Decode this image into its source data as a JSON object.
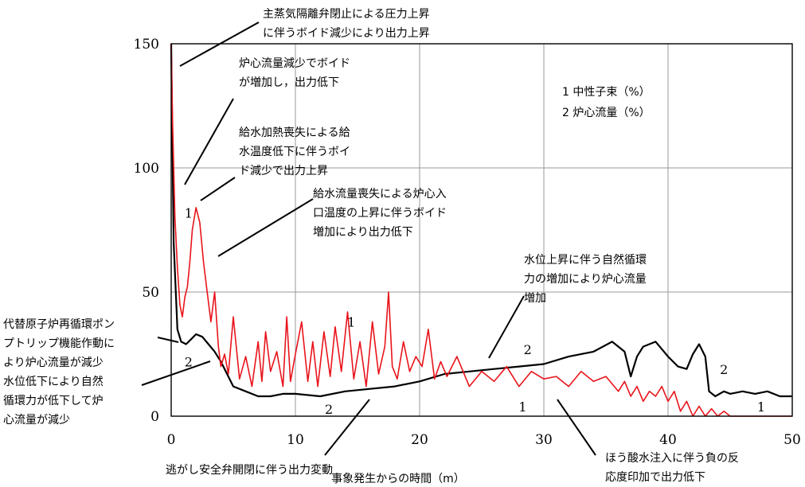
{
  "chart_data": {
    "type": "line",
    "xlabel": "事象発生からの時間（m）",
    "xlim": [
      0,
      50
    ],
    "ylim": [
      0,
      150
    ],
    "xticks": [
      "0",
      "10",
      "20",
      "30",
      "40",
      "50"
    ],
    "yticks": [
      "0",
      "50",
      "100",
      "150"
    ],
    "legend": [
      "1 中性子束（%）",
      "2 炉心流量（%）"
    ],
    "legend_position": "top-right",
    "grid": true,
    "colors": {
      "series1": "#e8141b",
      "series2": "#000000"
    },
    "series": [
      {
        "name": "1 中性子束（%）",
        "color": "#e8141b",
        "x": [
          0,
          0.1,
          0.3,
          0.5,
          0.7,
          0.9,
          1.1,
          1.3,
          1.5,
          1.7,
          2.0,
          2.3,
          2.6,
          2.9,
          3.2,
          3.5,
          3.8,
          4.0,
          4.3,
          4.6,
          5.0,
          5.5,
          6.0,
          6.5,
          7.0,
          7.3,
          7.6,
          8.0,
          8.5,
          9.0,
          9.3,
          9.6,
          10.0,
          10.5,
          11.0,
          11.4,
          11.8,
          12.3,
          12.8,
          13.2,
          13.7,
          14.2,
          14.7,
          15.2,
          15.7,
          16.2,
          16.7,
          17.2,
          17.5,
          17.8,
          18.2,
          18.7,
          19.2,
          19.7,
          20.2,
          20.7,
          21.2,
          21.7,
          22.2,
          23.0,
          24.0,
          25.0,
          26.0,
          27.0,
          28.0,
          29.0,
          30.0,
          31.0,
          32.0,
          33.0,
          34.0,
          35.0,
          36.0,
          36.5,
          37.0,
          37.5,
          38.0,
          38.5,
          39.0,
          39.5,
          40.0,
          40.5,
          41.0,
          41.5,
          42.0,
          42.5,
          43.0,
          43.5,
          44.0,
          44.5,
          45.0,
          50.0
        ],
        "y": [
          150,
          120,
          80,
          60,
          45,
          40,
          48,
          52,
          62,
          75,
          84,
          78,
          62,
          50,
          38,
          50,
          28,
          20,
          25,
          17,
          40,
          15,
          24,
          12,
          30,
          14,
          34,
          18,
          26,
          12,
          40,
          14,
          25,
          38,
          14,
          30,
          12,
          34,
          16,
          36,
          18,
          42,
          15,
          30,
          12,
          38,
          17,
          28,
          50,
          20,
          15,
          30,
          18,
          24,
          20,
          35,
          15,
          22,
          16,
          24,
          12,
          18,
          14,
          20,
          12,
          18,
          15,
          16,
          12,
          18,
          14,
          16,
          10,
          14,
          8,
          12,
          6,
          10,
          8,
          12,
          6,
          10,
          2,
          6,
          0,
          4,
          0,
          3,
          0,
          2,
          0,
          0
        ]
      },
      {
        "name": "2 炉心流量（%）",
        "color": "#000000",
        "x": [
          0,
          0.2,
          0.5,
          0.8,
          1.2,
          1.6,
          2.0,
          2.5,
          3.0,
          3.5,
          4.0,
          5.0,
          6.0,
          7.0,
          8.0,
          9.0,
          10.0,
          12.0,
          14.0,
          16.0,
          18.0,
          20.0,
          22.0,
          24.0,
          26.0,
          28.0,
          30.0,
          32.0,
          34.0,
          35.5,
          36.5,
          37.0,
          37.5,
          38.0,
          38.5,
          39.0,
          40.0,
          40.8,
          41.5,
          42.0,
          42.5,
          43.0,
          43.3,
          43.8,
          44.5,
          45.0,
          46.0,
          47.0,
          48.0,
          49.0,
          50.0
        ],
        "y": [
          150,
          70,
          35,
          30,
          29,
          31,
          33,
          32,
          29,
          26,
          22,
          12,
          10,
          8,
          8,
          9,
          9,
          8,
          10,
          11,
          12,
          14,
          17,
          18,
          19,
          20,
          21,
          24,
          26,
          30,
          26,
          16,
          24,
          28,
          29,
          30,
          24,
          20,
          19,
          25,
          29,
          24,
          10,
          8,
          10,
          9,
          10,
          9,
          10,
          8,
          8
        ]
      }
    ],
    "curve_marks": [
      {
        "text": "1",
        "x": 1.4,
        "y": 80
      },
      {
        "text": "1",
        "x": 14.5,
        "y": 36
      },
      {
        "text": "1",
        "x": 28.3,
        "y": 2
      },
      {
        "text": "1",
        "x": 47.5,
        "y": 2
      },
      {
        "text": "2",
        "x": 1.4,
        "y": 20
      },
      {
        "text": "2",
        "x": 12.7,
        "y": 1
      },
      {
        "text": "2",
        "x": 28.7,
        "y": 25
      },
      {
        "text": "2",
        "x": 44.5,
        "y": 17
      }
    ],
    "annotations": [
      {
        "id": "a1",
        "lines": [
          "主蒸気隔離弁閉止による圧力上昇",
          "に伴うボイド減少により出力上昇"
        ]
      },
      {
        "id": "a2",
        "lines": [
          "炉心流量減少でボイド",
          "が増加し，出力低下"
        ]
      },
      {
        "id": "a3",
        "lines": [
          "給水加熱喪失による給",
          "水温度低下に伴うボイ",
          "ド減少で出力上昇"
        ]
      },
      {
        "id": "a4",
        "lines": [
          "給水流量喪失による炉心入",
          "口温度の上昇に伴うボイド",
          "増加により出力低下"
        ]
      },
      {
        "id": "a5",
        "lines": [
          "水位上昇に伴う自然循環",
          "力の増加により炉心流量",
          "増加"
        ]
      },
      {
        "id": "a6",
        "lines": [
          "代替原子炉再循環ポン",
          "プトリップ機能作動に",
          "より炉心流量が減少"
        ]
      },
      {
        "id": "a7",
        "lines": [
          "水位低下により自然",
          "循環力が低下して炉",
          "心流量が減少"
        ]
      },
      {
        "id": "a8",
        "lines": [
          "逃がし安全弁開閉に伴う出力変動"
        ]
      },
      {
        "id": "a9",
        "lines": [
          "ほう酸水注入に伴う負の反",
          "応度印加で出力低下"
        ]
      }
    ]
  }
}
